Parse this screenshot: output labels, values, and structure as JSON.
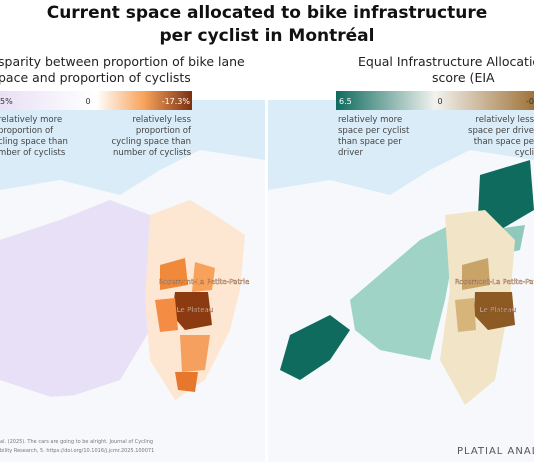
{
  "header": {
    "title": [
      "Current space allocated to bike infrastructure",
      "per cyclist in Montréal"
    ]
  },
  "panels": [
    {
      "title": [
        "sparity between proportion of bike lane",
        "pace and proportion of cyclists"
      ],
      "legend": {
        "ticks": [
          "5%",
          "0",
          "-17.3%"
        ],
        "low_label": [
          "relatively more",
          "proportion of",
          "cling space than",
          "mber of cyclists"
        ],
        "high_label": [
          "relatively less",
          "proportion of",
          "cycling space than",
          "number of cyclists"
        ]
      },
      "places": [
        "Rosemont-La Petite-Patrie",
        "Le Plateau"
      ]
    },
    {
      "title": [
        "Equal Infrastructure Allocation",
        "score (EIA"
      ],
      "legend": {
        "ticks": [
          "6.5",
          "0",
          "-0"
        ],
        "low_label": [
          "relatively more",
          "space per cyclist",
          "than space per",
          "driver"
        ],
        "high_label": [
          "relatively less",
          "space per drive",
          "than space pe",
          "cycli"
        ]
      },
      "places": [
        "Rosemont-La Petite-Patrie",
        "Le Plateau"
      ]
    }
  ],
  "footer": {
    "citation": [
      "al. (2025). The cars are going to be alright. Journal of Cycling",
      "bility Research, 5. https://doi.org/10.1016/j.jcmr.2025.100071"
    ],
    "brand": "PLATIAL ANALY"
  }
}
